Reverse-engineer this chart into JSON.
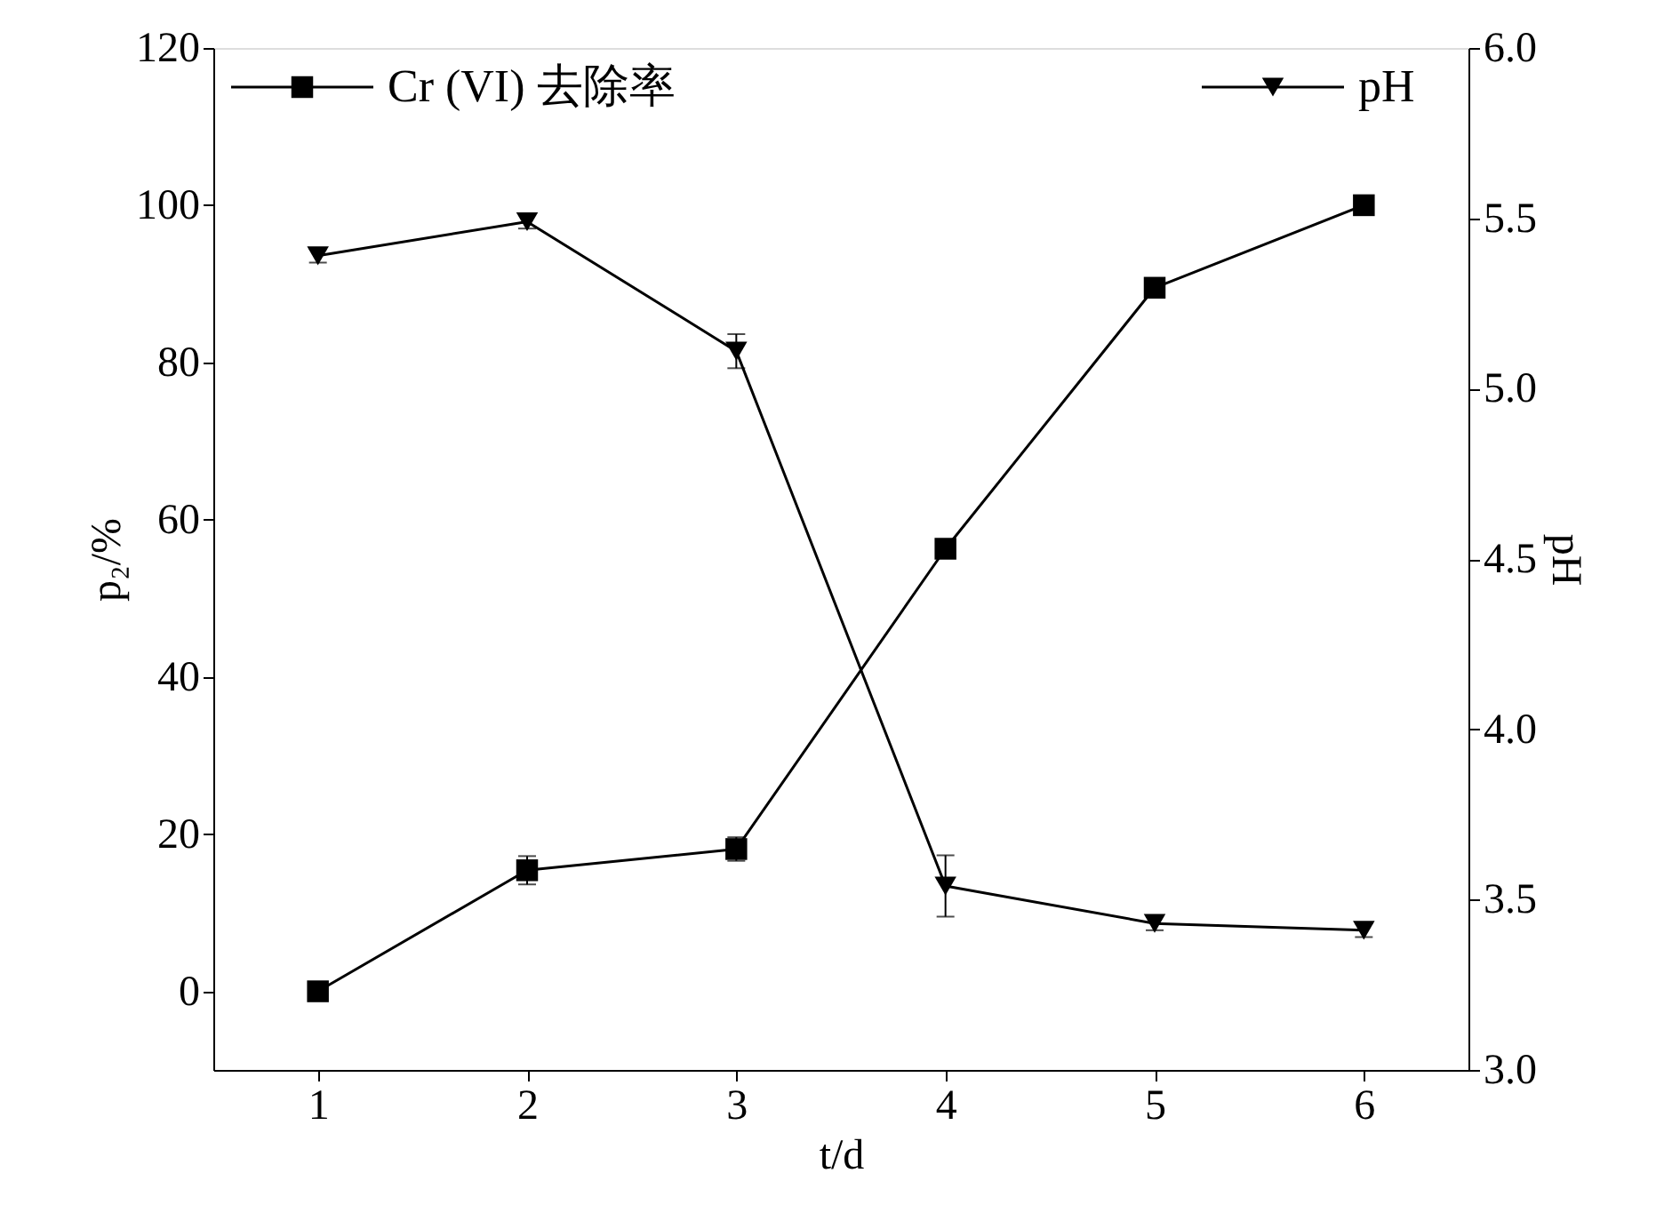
{
  "chart_data": {
    "type": "line",
    "xlabel": "t/d",
    "ylabel": "p₂/%",
    "y2label": "pH",
    "x": [
      1,
      2,
      3,
      4,
      5,
      6
    ],
    "series": [
      {
        "name": "Cr (VI) 去除率",
        "color": "#000000",
        "marker": "square",
        "values": [
          0,
          15.4,
          18.1,
          56.3,
          89.5,
          100
        ],
        "errors": [
          0.5,
          1.8,
          1.5,
          0.6,
          0.6,
          0.5
        ]
      },
      {
        "name": "pH",
        "color": "#000000",
        "marker": "triangle",
        "axis": "y2",
        "values": [
          5.39,
          5.49,
          5.11,
          3.54,
          3.43,
          3.41
        ],
        "errors": [
          0.02,
          0.02,
          0.05,
          0.09,
          0.02,
          0.02
        ]
      }
    ],
    "xlim": [
      0.5,
      6.5
    ],
    "xticks": [
      1,
      2,
      3,
      4,
      5,
      6
    ],
    "ylim": [
      -10,
      120
    ],
    "yticks": [
      0,
      20,
      40,
      60,
      80,
      100,
      120
    ],
    "y2lim": [
      3.0,
      6.0
    ],
    "y2ticks": [
      {
        "value": 3,
        "label": "3.0"
      },
      {
        "value": 3.5,
        "label": "3.5"
      },
      {
        "value": 4,
        "label": "4.0"
      },
      {
        "value": 4.5,
        "label": "4.5"
      },
      {
        "value": 5,
        "label": "5.0"
      },
      {
        "value": 5.5,
        "label": "5.5"
      },
      {
        "value": 6,
        "label": "6.0"
      }
    ],
    "legend": "top",
    "grid": false,
    "line_style": "solid"
  }
}
